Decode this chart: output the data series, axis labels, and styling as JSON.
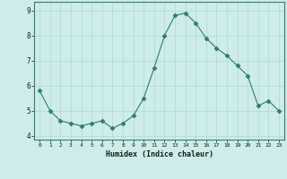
{
  "xlabel": "Humidex (Indice chaleur)",
  "x": [
    0,
    1,
    2,
    3,
    4,
    5,
    6,
    7,
    8,
    9,
    10,
    11,
    12,
    13,
    14,
    15,
    16,
    17,
    18,
    19,
    20,
    21,
    22,
    23
  ],
  "y": [
    5.8,
    5.0,
    4.6,
    4.5,
    4.4,
    4.5,
    4.6,
    4.3,
    4.5,
    4.8,
    5.5,
    6.7,
    8.0,
    8.8,
    8.9,
    8.5,
    7.9,
    7.5,
    7.2,
    6.8,
    6.4,
    5.2,
    5.4,
    5.0
  ],
  "line_color": "#2e7d6e",
  "marker": "D",
  "marker_size": 2.5,
  "bg_color": "#cdecea",
  "grid_color": "#b0d8d4",
  "tick_color": "#1a1a1a",
  "xlim": [
    -0.5,
    23.5
  ],
  "ylim": [
    3.85,
    9.35
  ],
  "yticks": [
    4,
    5,
    6,
    7,
    8,
    9
  ],
  "xticks": [
    0,
    1,
    2,
    3,
    4,
    5,
    6,
    7,
    8,
    9,
    10,
    11,
    12,
    13,
    14,
    15,
    16,
    17,
    18,
    19,
    20,
    21,
    22,
    23
  ]
}
